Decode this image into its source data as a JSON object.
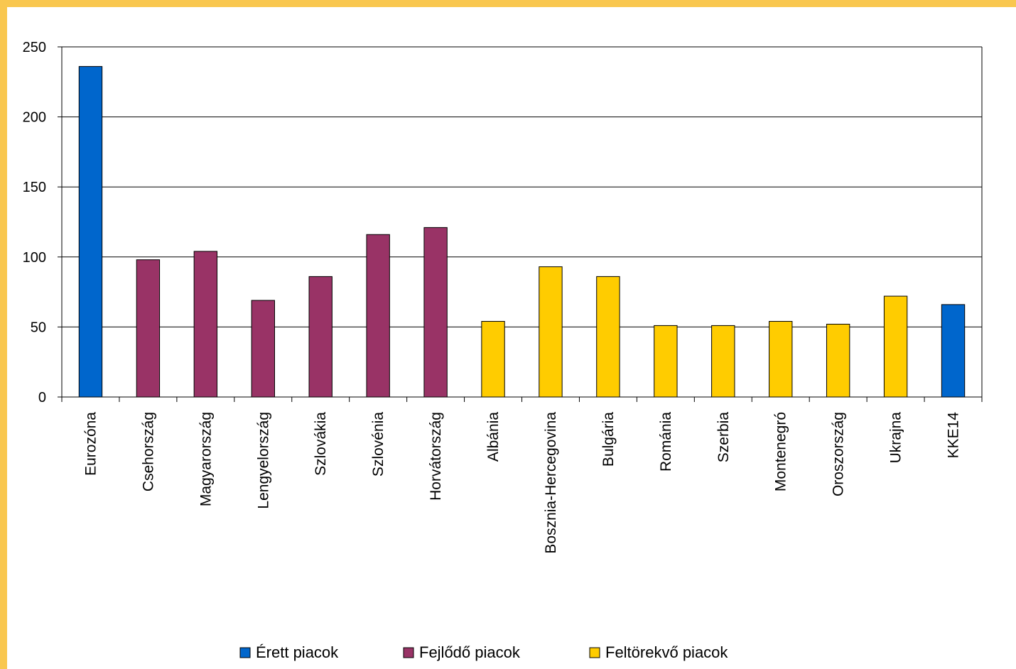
{
  "chart_data": {
    "type": "bar",
    "title": "",
    "xlabel": "",
    "ylabel": "",
    "ylim": [
      0,
      250
    ],
    "yticks": [
      0,
      50,
      100,
      150,
      200,
      250
    ],
    "grid": true,
    "legend_position": "bottom-center",
    "categories": [
      "Eurozóna",
      "Csehország",
      "Magyarország",
      "Lengyelország",
      "Szlovákia",
      "Szlovénia",
      "Horvátország",
      "Albánia",
      "Bosznia-Hercegovina",
      "Bulgária",
      "Románia",
      "Szerbia",
      "Montenegró",
      "Oroszország",
      "Ukrajna",
      "KKE14"
    ],
    "values": [
      236,
      98,
      104,
      69,
      86,
      116,
      121,
      54,
      93,
      86,
      51,
      51,
      54,
      52,
      72,
      66
    ],
    "groups": [
      0,
      1,
      1,
      1,
      1,
      1,
      1,
      2,
      2,
      2,
      2,
      2,
      2,
      2,
      2,
      0
    ],
    "legend": [
      {
        "label": "Érett piacok",
        "color": "#0066CC"
      },
      {
        "label": "Fejlődő piacok",
        "color": "#993366"
      },
      {
        "label": "Feltörekvő piacok",
        "color": "#FFCC00"
      }
    ]
  }
}
